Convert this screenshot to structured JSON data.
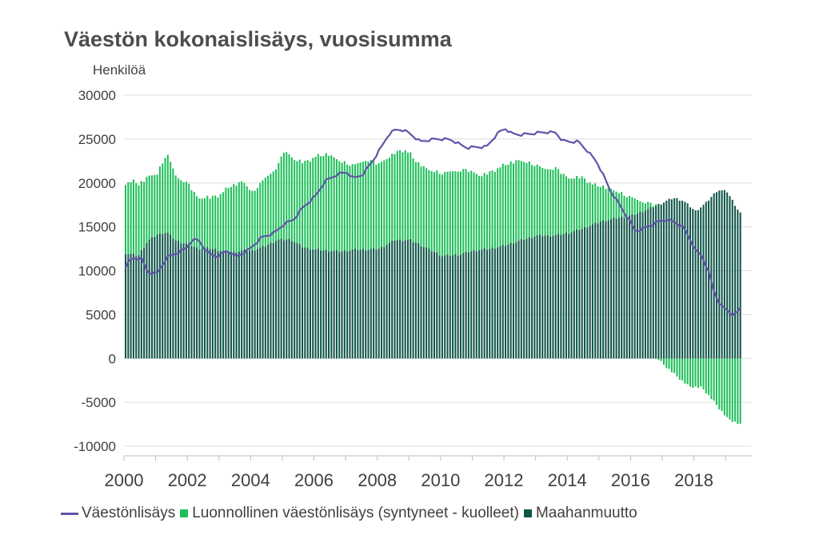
{
  "chart_data": {
    "type": "bar",
    "title": "Väestön kokonaislisäys, vuosisumma",
    "ylabel": "Henkilöä",
    "xlabel": "",
    "ylim": [
      -10000,
      30000
    ],
    "yticks": [
      30000,
      25000,
      20000,
      15000,
      10000,
      5000,
      0,
      -5000,
      -10000
    ],
    "ytick_labels": [
      "30000",
      "25000",
      "20000",
      "15000",
      "10000",
      "5000",
      "0",
      "-5000",
      "-10000"
    ],
    "xlim": [
      2000,
      2019.83
    ],
    "xticks": [
      "2000",
      "2002",
      "2004",
      "2006",
      "2008",
      "2010",
      "2012",
      "2014",
      "2016",
      "2018"
    ],
    "grid": true,
    "legend_position": "bottom",
    "x_start": "2000-01",
    "x_end": "2019-06",
    "x_frequency": "monthly",
    "series": [
      {
        "name": "Väestönlisäys",
        "type": "line",
        "color": "#5f55a8",
        "anchors": [
          [
            2000.0,
            10500
          ],
          [
            2000.2,
            11400
          ],
          [
            2000.5,
            11400
          ],
          [
            2000.7,
            9800
          ],
          [
            2001.0,
            9700
          ],
          [
            2001.3,
            11500
          ],
          [
            2001.6,
            12000
          ],
          [
            2001.9,
            12500
          ],
          [
            2002.1,
            13500
          ],
          [
            2002.3,
            13500
          ],
          [
            2002.6,
            12000
          ],
          [
            2002.9,
            11600
          ],
          [
            2003.2,
            12300
          ],
          [
            2003.5,
            11600
          ],
          [
            2003.9,
            12400
          ],
          [
            2004.3,
            13800
          ],
          [
            2004.7,
            14300
          ],
          [
            2005.0,
            15300
          ],
          [
            2005.3,
            15800
          ],
          [
            2005.6,
            17200
          ],
          [
            2006.0,
            18500
          ],
          [
            2006.3,
            20200
          ],
          [
            2006.7,
            21000
          ],
          [
            2007.0,
            21200
          ],
          [
            2007.2,
            20500
          ],
          [
            2007.5,
            21000
          ],
          [
            2007.8,
            22500
          ],
          [
            2008.1,
            24200
          ],
          [
            2008.3,
            25500
          ],
          [
            2008.5,
            26000
          ],
          [
            2008.7,
            26100
          ],
          [
            2008.9,
            25800
          ],
          [
            2009.1,
            25300
          ],
          [
            2009.3,
            24700
          ],
          [
            2009.6,
            24900
          ],
          [
            2009.8,
            25000
          ],
          [
            2010.0,
            25000
          ],
          [
            2010.3,
            24900
          ],
          [
            2010.6,
            24300
          ],
          [
            2010.8,
            24000
          ],
          [
            2011.1,
            24100
          ],
          [
            2011.4,
            24100
          ],
          [
            2011.6,
            25000
          ],
          [
            2011.8,
            25800
          ],
          [
            2012.0,
            26200
          ],
          [
            2012.2,
            25600
          ],
          [
            2012.5,
            25500
          ],
          [
            2012.8,
            25600
          ],
          [
            2013.0,
            25700
          ],
          [
            2013.3,
            25800
          ],
          [
            2013.6,
            25700
          ],
          [
            2013.8,
            24800
          ],
          [
            2014.0,
            24700
          ],
          [
            2014.3,
            24700
          ],
          [
            2014.6,
            23600
          ],
          [
            2014.9,
            22300
          ],
          [
            2015.1,
            20800
          ],
          [
            2015.3,
            19200
          ],
          [
            2015.6,
            17500
          ],
          [
            2015.9,
            15800
          ],
          [
            2016.1,
            14500
          ],
          [
            2016.3,
            14700
          ],
          [
            2016.6,
            15200
          ],
          [
            2016.9,
            15700
          ],
          [
            2017.1,
            15800
          ],
          [
            2017.3,
            15600
          ],
          [
            2017.6,
            15000
          ],
          [
            2017.8,
            13800
          ],
          [
            2018.0,
            12300
          ],
          [
            2018.2,
            11700
          ],
          [
            2018.4,
            10000
          ],
          [
            2018.6,
            7500
          ],
          [
            2018.8,
            6000
          ],
          [
            2019.0,
            5500
          ],
          [
            2019.2,
            4900
          ],
          [
            2019.4,
            5500
          ],
          [
            2019.5,
            7300
          ]
        ]
      },
      {
        "name": "Luonnollinen väestönlisäys (syntyneet - kuolleet)",
        "type": "bar",
        "color": "#1fbf5a",
        "anchors": [
          [
            2000.0,
            8000
          ],
          [
            2000.3,
            8400
          ],
          [
            2000.6,
            7500
          ],
          [
            2001.0,
            6900
          ],
          [
            2001.3,
            9000
          ],
          [
            2001.6,
            7300
          ],
          [
            2002.0,
            6800
          ],
          [
            2002.3,
            5700
          ],
          [
            2002.7,
            5800
          ],
          [
            2003.0,
            6400
          ],
          [
            2003.3,
            7500
          ],
          [
            2003.7,
            7900
          ],
          [
            2004.0,
            6600
          ],
          [
            2004.4,
            7700
          ],
          [
            2004.8,
            8300
          ],
          [
            2005.0,
            10100
          ],
          [
            2005.3,
            9300
          ],
          [
            2005.7,
            9800
          ],
          [
            2006.0,
            10600
          ],
          [
            2006.4,
            11000
          ],
          [
            2006.8,
            10200
          ],
          [
            2007.2,
            9600
          ],
          [
            2007.6,
            10200
          ],
          [
            2008.0,
            9700
          ],
          [
            2008.4,
            9800
          ],
          [
            2008.8,
            10300
          ],
          [
            2009.2,
            9200
          ],
          [
            2009.6,
            9000
          ],
          [
            2010.0,
            9400
          ],
          [
            2010.4,
            9600
          ],
          [
            2010.8,
            9400
          ],
          [
            2011.2,
            8400
          ],
          [
            2011.6,
            8800
          ],
          [
            2012.0,
            9200
          ],
          [
            2012.4,
            9200
          ],
          [
            2012.8,
            8400
          ],
          [
            2013.2,
            7600
          ],
          [
            2013.6,
            7600
          ],
          [
            2014.0,
            6200
          ],
          [
            2014.4,
            5900
          ],
          [
            2014.8,
            4400
          ],
          [
            2015.2,
            3700
          ],
          [
            2015.6,
            2800
          ],
          [
            2016.0,
            2000
          ],
          [
            2016.4,
            900
          ],
          [
            2016.8,
            0
          ],
          [
            2017.0,
            -700
          ],
          [
            2017.4,
            -2000
          ],
          [
            2017.8,
            -3200
          ],
          [
            2018.2,
            -3300
          ],
          [
            2018.6,
            -5000
          ],
          [
            2019.0,
            -6800
          ],
          [
            2019.5,
            -7700
          ]
        ]
      },
      {
        "name": "Maahanmuutto",
        "type": "bar",
        "color": "#0e5548",
        "anchors": [
          [
            2000.0,
            12000
          ],
          [
            2000.4,
            11700
          ],
          [
            2000.7,
            13400
          ],
          [
            2001.0,
            14100
          ],
          [
            2001.3,
            14400
          ],
          [
            2001.6,
            13400
          ],
          [
            2002.0,
            13000
          ],
          [
            2002.3,
            12500
          ],
          [
            2002.6,
            12600
          ],
          [
            2003.0,
            12300
          ],
          [
            2003.4,
            12100
          ],
          [
            2003.7,
            12300
          ],
          [
            2004.0,
            12300
          ],
          [
            2004.4,
            12800
          ],
          [
            2004.8,
            13500
          ],
          [
            2005.2,
            13600
          ],
          [
            2005.6,
            12700
          ],
          [
            2006.0,
            12400
          ],
          [
            2006.4,
            12300
          ],
          [
            2006.8,
            12200
          ],
          [
            2007.2,
            12400
          ],
          [
            2007.6,
            12400
          ],
          [
            2008.0,
            12500
          ],
          [
            2008.5,
            13500
          ],
          [
            2009.0,
            13500
          ],
          [
            2009.5,
            12600
          ],
          [
            2010.0,
            11700
          ],
          [
            2010.5,
            11800
          ],
          [
            2011.0,
            12300
          ],
          [
            2011.5,
            12500
          ],
          [
            2012.0,
            12900
          ],
          [
            2012.5,
            13500
          ],
          [
            2013.0,
            14000
          ],
          [
            2013.5,
            14000
          ],
          [
            2014.0,
            14300
          ],
          [
            2014.5,
            14900
          ],
          [
            2015.0,
            15600
          ],
          [
            2015.5,
            16000
          ],
          [
            2016.0,
            16300
          ],
          [
            2016.5,
            17000
          ],
          [
            2017.0,
            17800
          ],
          [
            2017.3,
            18300
          ],
          [
            2017.6,
            18000
          ],
          [
            2018.0,
            16800
          ],
          [
            2018.3,
            17600
          ],
          [
            2018.7,
            19200
          ],
          [
            2019.0,
            19000
          ],
          [
            2019.4,
            16600
          ]
        ]
      }
    ]
  },
  "legend": {
    "line_label": "Väestönlisäys",
    "natural_label": "Luonnollinen väestönlisäys (syntyneet - kuolleet)",
    "migration_label": "Maahanmuutto"
  }
}
